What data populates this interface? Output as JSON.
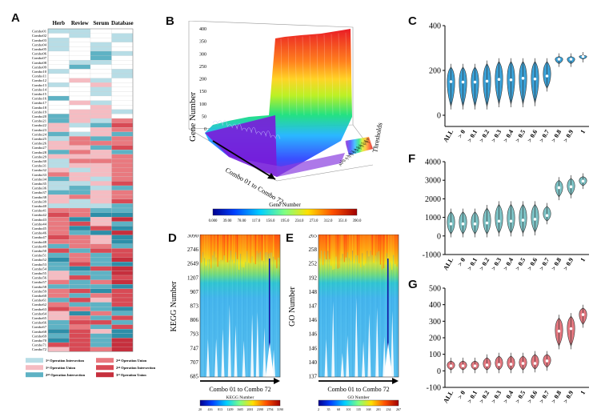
{
  "panels": {
    "A": "A",
    "B": "B",
    "C": "C",
    "D": "D",
    "E": "E",
    "F": "F",
    "G": "G"
  },
  "panel_a": {
    "columns": [
      "Herb",
      "Review",
      "Serum",
      "Database"
    ],
    "rows": [
      "Combo01",
      "Combo02",
      "Combo03",
      "Combo04",
      "Combo05",
      "Combo06",
      "Combo07",
      "Combo08",
      "Combo09",
      "Combo10",
      "Combo11",
      "Combo12",
      "Combo13",
      "Combo14",
      "Combo15",
      "Combo16",
      "Combo17",
      "Combo18",
      "Combo19",
      "Combo20",
      "Combo21",
      "Combo22",
      "Combo23",
      "Combo24",
      "Combo25",
      "Combo26",
      "Combo27",
      "Combo28",
      "Combo29",
      "Combo30",
      "Combo31",
      "Combo32",
      "Combo33",
      "Combo34",
      "Combo35",
      "Combo36",
      "Combo37",
      "Combo38",
      "Combo39",
      "Combo40",
      "Combo41",
      "Combo42",
      "Combo43",
      "Combo44",
      "Combo45",
      "Combo46",
      "Combo47",
      "Combo48",
      "Combo49",
      "Combo50",
      "Combo51",
      "Combo52",
      "Combo53",
      "Combo54",
      "Combo55",
      "Combo56",
      "Combo57",
      "Combo58",
      "Combo59",
      "Combo60",
      "Combo61",
      "Combo62",
      "Combo63",
      "Combo64",
      "Combo65",
      "Combo66",
      "Combo67",
      "Combo68",
      "Combo69",
      "Combo70",
      "Combo71",
      "Combo72"
    ],
    "legend": [
      {
        "label": "1ˢᵗ Operation Intersection",
        "color": "#b7dde6"
      },
      {
        "label": "2ⁿᵈ Operation Union",
        "color": "#e9797f"
      },
      {
        "label": "1ˢᵗ Operation Union",
        "color": "#f5bcc2"
      },
      {
        "label": "2ⁿᵈ Operation Intersection",
        "color": "#d84a55"
      },
      {
        "label": "2ⁿᵈ Operation Intersection",
        "color": "#5eb2c4"
      },
      {
        "label": "3ʳᵈ Operation Union",
        "color": "#c62f3d"
      }
    ]
  },
  "panel_b": {
    "ylabel": "Gene Number",
    "y_ticks": [
      "0",
      "50",
      "100",
      "150",
      "200",
      "250",
      "300",
      "350",
      "400"
    ],
    "xlabel": "Combo 01 to Combo 72",
    "threshold_label": "Thresholds",
    "threshold_ticks": [
      "ALL",
      "> 0",
      "> 0.1",
      "> 0.2",
      "> 0.3",
      "> 0.4",
      "> 0.5",
      "> 0.6",
      "> 0.7",
      "> 0.8",
      "> 0.9",
      "1"
    ],
    "colorbar_title": "Gene Number",
    "colorbar_ticks": [
      "0.000",
      "39.00",
      "78.00",
      "117.0",
      "156.0",
      "195.0",
      "234.0",
      "273.0",
      "312.0",
      "351.0",
      "390.0"
    ]
  },
  "panel_d": {
    "ylabel": "KEGG Number",
    "y_ticks": [
      "3090",
      "2746",
      "2649",
      "1207",
      "907",
      "873",
      "806",
      "793",
      "747",
      "707",
      "685"
    ],
    "xlabel": "Combo 01 to Combo 72",
    "colorbar_title": "KEGG Number",
    "colorbar_ticks": [
      "20",
      "416",
      "813",
      "1209",
      "1605",
      "2001",
      "2398",
      "2794",
      "3190"
    ]
  },
  "panel_e": {
    "ylabel": "GO Number",
    "y_ticks": [
      "265",
      "258",
      "252",
      "192",
      "148",
      "147",
      "146",
      "146",
      "146",
      "140",
      "137"
    ],
    "xlabel": "Combo 01 to Combo 72",
    "colorbar_title": "GO Number",
    "colorbar_ticks": [
      "2",
      "35",
      "68",
      "101",
      "135",
      "168",
      "201",
      "234",
      "267"
    ]
  },
  "violin_categories": [
    "ALL",
    "> 0",
    "> 0.1",
    "> 0.2",
    "> 0.3",
    "> 0.4",
    "> 0.5",
    "> 0.6",
    "> 0.7",
    "> 0.8",
    "> 0.9",
    "1"
  ],
  "chart_data": [
    {
      "type": "violin",
      "panel": "C",
      "color": "#3aa0d6",
      "ylim": [
        -50,
        400
      ],
      "y_ticks": [
        0,
        200,
        400
      ],
      "categories": [
        "ALL",
        "> 0",
        "> 0.1",
        "> 0.2",
        "> 0.3",
        "> 0.4",
        "> 0.5",
        "> 0.6",
        "> 0.7",
        "> 0.8",
        "> 0.9",
        "1"
      ],
      "medians": [
        150,
        148,
        148,
        152,
        160,
        158,
        165,
        162,
        175,
        250,
        250,
        262
      ],
      "low": [
        40,
        40,
        40,
        40,
        50,
        50,
        50,
        55,
        120,
        230,
        230,
        250
      ],
      "high": [
        215,
        215,
        215,
        230,
        240,
        240,
        240,
        240,
        240,
        262,
        262,
        268
      ]
    },
    {
      "type": "violin",
      "panel": "F",
      "color": "#7cc1c4",
      "ylim": [
        -1000,
        4000
      ],
      "y_ticks": [
        -1000,
        0,
        1000,
        2000,
        3000,
        4000
      ],
      "categories": [
        "ALL",
        "> 0",
        "> 0.1",
        "> 0.2",
        "> 0.3",
        "> 0.4",
        "> 0.5",
        "> 0.6",
        "> 0.7",
        "> 0.8",
        "> 0.9",
        "1"
      ],
      "medians": [
        650,
        650,
        650,
        700,
        800,
        800,
        850,
        900,
        1100,
        2600,
        2650,
        2950
      ],
      "low": [
        100,
        100,
        100,
        100,
        150,
        150,
        150,
        200,
        800,
        2100,
        2200,
        2700
      ],
      "high": [
        1300,
        1300,
        1300,
        1500,
        1700,
        1700,
        1700,
        1700,
        1600,
        3000,
        3100,
        3200
      ]
    },
    {
      "type": "violin",
      "panel": "G",
      "color": "#e3777f",
      "ylim": [
        -100,
        500
      ],
      "y_ticks": [
        -100,
        0,
        100,
        200,
        300,
        400,
        500
      ],
      "categories": [
        "ALL",
        "> 0",
        "> 0.1",
        "> 0.2",
        "> 0.3",
        "> 0.4",
        "> 0.5",
        "> 0.6",
        "> 0.7",
        "> 0.8",
        "> 0.9",
        "1"
      ],
      "medians": [
        30,
        30,
        30,
        35,
        38,
        40,
        45,
        45,
        60,
        240,
        255,
        340
      ],
      "low": [
        5,
        5,
        5,
        5,
        5,
        5,
        5,
        10,
        20,
        150,
        150,
        280
      ],
      "high": [
        60,
        60,
        60,
        80,
        90,
        90,
        90,
        100,
        100,
        320,
        330,
        380
      ]
    }
  ]
}
